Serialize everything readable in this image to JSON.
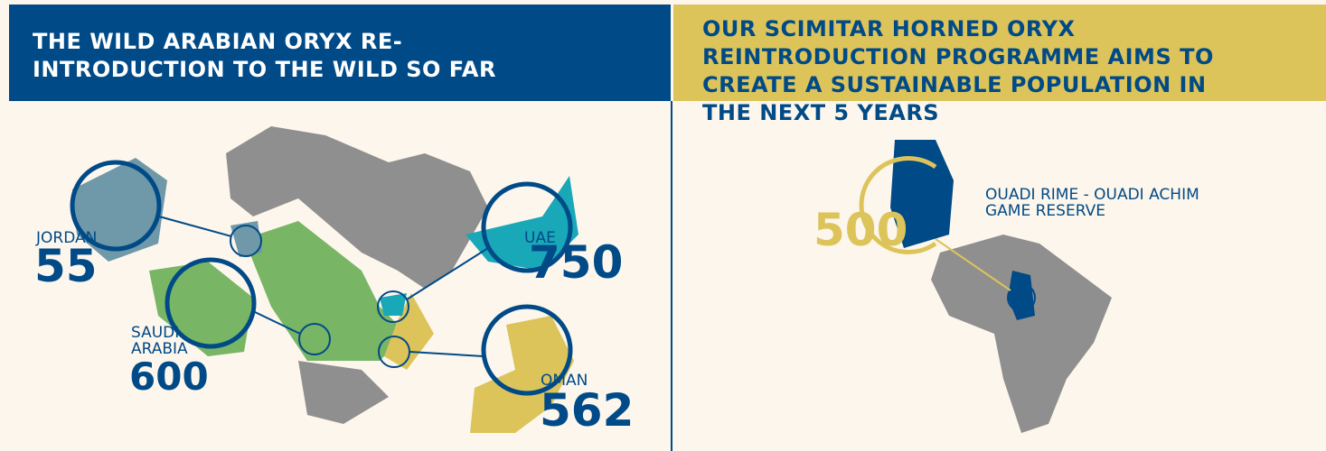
{
  "left": {
    "title": "THE WILD ARABIAN ORYX RE-INTRODUCTION TO THE WILD SO FAR",
    "countries": [
      {
        "name": "JORDAN",
        "count": 55
      },
      {
        "name": "SAUDI ARABIA",
        "count": 600
      },
      {
        "name": "UAE",
        "count": 750
      },
      {
        "name": "OMAN",
        "count": 562
      }
    ]
  },
  "right": {
    "title": "OUR SCIMITAR HORNED ORYX REINTRODUCTION PROGRAMME AIMS TO CREATE A SUSTAINABLE POPULATION IN THE NEXT 5 YEARS",
    "site": "OUADI RIME - OUADI ACHIM GAME RESERVE",
    "count": 500
  }
}
